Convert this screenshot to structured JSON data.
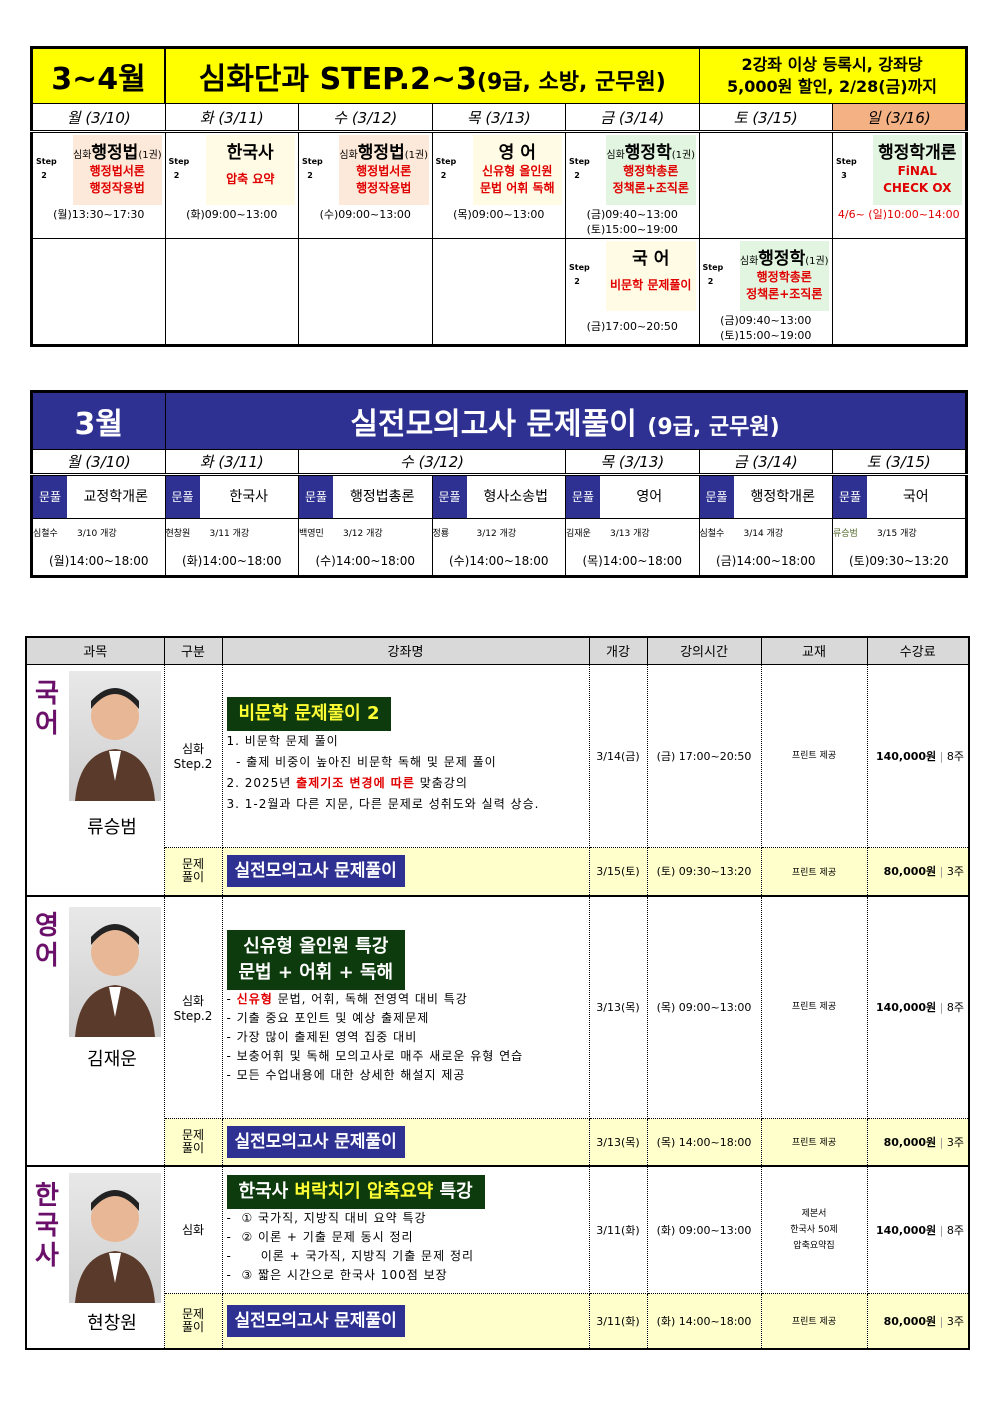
{
  "schedule1": {
    "title_month": "3~4월",
    "title_main": "심화단과 STEP.2~3",
    "title_sub": "(9급, 소방, 군무원)",
    "notice": [
      "2강좌 이상 등록시, 강좌당",
      "5,000원 할인, 2/28(금)까지"
    ],
    "days": [
      "월 (3/10)",
      "화 (3/11)",
      "수 (3/12)",
      "목 (3/13)",
      "금 (3/14)",
      "토 (3/15)",
      "일 (3/16)"
    ],
    "rows": [
      [
        {
          "step": "Step 2",
          "prefix": "심화",
          "title": "행정법",
          "suffix": "(1권)",
          "lines": [
            "행정법서론",
            "행정작용법"
          ],
          "bg": "#fde9d9",
          "times": [
            "(월)13:30~17:30"
          ]
        },
        {
          "step": "Step 2",
          "prefix": "",
          "title": "한국사",
          "suffix": "",
          "lines": [
            "압축 요약"
          ],
          "bg": "#fffbe5",
          "times": [
            "(화)09:00~13:00"
          ]
        },
        {
          "step": "Step 2",
          "prefix": "심화",
          "title": "행정법",
          "suffix": "(1권)",
          "lines": [
            "행정법서론",
            "행정작용법"
          ],
          "bg": "#fde9d9",
          "times": [
            "(수)09:00~13:00"
          ]
        },
        {
          "step": "Step 2",
          "prefix": "",
          "title": "영 어",
          "suffix": "",
          "lines": [
            "신유형 올인원",
            "문법 어휘 독해"
          ],
          "bg": "#fffbe5",
          "times": [
            "(목)09:00~13:00"
          ]
        },
        {
          "step": "Step 2",
          "prefix": "심화",
          "title": "행정학",
          "suffix": "(1권)",
          "lines": [
            "행정학총론",
            "정책론+조직론"
          ],
          "bg": "#e2f5e0",
          "times": [
            "(금)09:40~13:00",
            "(토)15:00~19:00"
          ]
        },
        null,
        {
          "step": "Step 3",
          "prefix": "",
          "title": "행정학개론",
          "suffix": "",
          "lines": [
            "FiNAL",
            "CHECK OX"
          ],
          "bg": "#e2f5e0",
          "times": [
            "4/6~ (일)10:00~14:00"
          ],
          "time_color": "#e00000"
        }
      ],
      [
        null,
        null,
        null,
        null,
        {
          "step": "Step 2",
          "prefix": "",
          "title": "국 어",
          "suffix": "",
          "lines": [
            "비문학 문제풀이"
          ],
          "bg": "#fffbe5",
          "times": [
            "(금)17:00~20:50"
          ]
        },
        {
          "step": "Step 2",
          "prefix": "심화",
          "title": "행정학",
          "suffix": "(1권)",
          "lines": [
            "행정학총론",
            "정책론+조직론"
          ],
          "bg": "#e2f5e0",
          "times": [
            "(금)09:40~13:00",
            "(토)15:00~19:00"
          ]
        },
        null
      ]
    ]
  },
  "schedule2": {
    "title_month": "3월",
    "title_main": "실전모의고사 문제풀이",
    "title_sub": "(9급, 군무원)",
    "days": [
      "월 (3/10)",
      "화 (3/11)",
      "수 (3/12)",
      "목 (3/13)",
      "금 (3/14)",
      "토 (3/15)"
    ],
    "badge": "문풀",
    "items": [
      {
        "subject": "교정학개론",
        "teacher": "심철수",
        "open": "3/10 개강",
        "time": "(월)14:00~18:00"
      },
      {
        "subject": "한국사",
        "teacher": "현창원",
        "open": "3/11 개강",
        "time": "(화)14:00~18:00"
      },
      {
        "subject": "행정법총론",
        "teacher": "백영민",
        "open": "3/12 개강",
        "time": "(수)14:00~18:00"
      },
      {
        "subject": "형사소송법",
        "teacher": "정룡",
        "open": "3/12 개강",
        "time": "(수)14:00~18:00"
      },
      {
        "subject": "영어",
        "teacher": "김재운",
        "open": "3/13 개강",
        "time": "(목)14:00~18:00"
      },
      {
        "subject": "행정학개론",
        "teacher": "심철수",
        "open": "3/14 개강",
        "time": "(금)14:00~18:00"
      },
      {
        "subject": "국어",
        "teacher": "류승범",
        "open": "3/15 개강",
        "time": "(토)09:30~13:20"
      }
    ]
  },
  "courses": {
    "headers": [
      "과목",
      "구분",
      "강좌명",
      "개강",
      "강의시간",
      "교재",
      "수강료"
    ],
    "groups": [
      {
        "subject": "국어",
        "teacher": "류승범",
        "main": {
          "type": "심화 Step.2",
          "banner": [
            "비문학 문제풀이 2"
          ],
          "desc": [
            "1. 비문학 문제 풀이",
            "  - 출제 비중이 높아진 비문학 독해 및 문제 풀이",
            "2. 2025년 |출제기조 변경에 따른| 맞춤강의",
            "3. 1-2월과 다른 지문, 다른 문제로 성취도와 실력 상승."
          ],
          "open": "3/14(금)",
          "time": "(금) 17:00~20:50",
          "book": [
            "프린트 제공"
          ],
          "price": "140,000원",
          "weeks": "8주"
        },
        "sub": {
          "type": "문제 풀이",
          "banner": "실전모의고사 문제풀이",
          "open": "3/15(토)",
          "time": "(토) 09:30~13:20",
          "book": "프린트 제공",
          "price": "80,000원",
          "weeks": "3주"
        }
      },
      {
        "subject": "영어",
        "teacher": "김재운",
        "main": {
          "type": "심화 Step.2",
          "banner": [
            "신유형 올인원 특강",
            "문법 + 어휘 + 독해"
          ],
          "desc": [
            "- |신유형| 문법, 어휘, 독해 전영역 대비 특강",
            "- 기출 중요 포인트 및 예상 출제문제",
            "- 가장 많이 출제된 영역 집중 대비",
            "- 보충어휘 및 독해 모의고사로 매주 새로운 유형 연습",
            "- 모든 수업내용에 대한 상세한 해설지 제공"
          ],
          "open": "3/13(목)",
          "time": "(목) 09:00~13:00",
          "book": [
            "프린트 제공"
          ],
          "price": "140,000원",
          "weeks": "8주"
        },
        "sub": {
          "type": "문제 풀이",
          "banner": "실전모의고사 문제풀이",
          "open": "3/13(목)",
          "time": "(목) 14:00~18:00",
          "book": "프린트 제공",
          "price": "80,000원",
          "weeks": "3주"
        }
      },
      {
        "subject": "한국사",
        "teacher": "현창원",
        "main": {
          "type": "심화",
          "banner": [
            "한국사 |벼락치기 압축요약| 특강"
          ],
          "desc": [
            "-  ① 국가직, 지방직 대비 요약 특강",
            "-  ② 이론 + 기출 문제 동시 정리",
            "-      이론 + 국가직, 지방직 기출 문제 정리",
            "-  ③ 짧은 시간으로 한국사 100점 보장"
          ],
          "open": "3/11(화)",
          "time": "(화)  09:00~13:00",
          "book": [
            "제본서",
            "한국사 50제",
            "압축요약집"
          ],
          "price": "140,000원",
          "weeks": "8주"
        },
        "sub": {
          "type": "문제 풀이",
          "banner": "실전모의고사 문제풀이",
          "open": "3/11(화)",
          "time": "(화)  14:00~18:00",
          "book": "프린트 제공",
          "price": "80,000원",
          "weeks": "3주"
        }
      }
    ]
  },
  "colors": {
    "yellow": "#ffff00",
    "blue": "#2e3192",
    "orange": "#f4b183",
    "red": "#e00000",
    "darkgreen": "#0d3b0d",
    "subject": "#6a0f6a"
  }
}
